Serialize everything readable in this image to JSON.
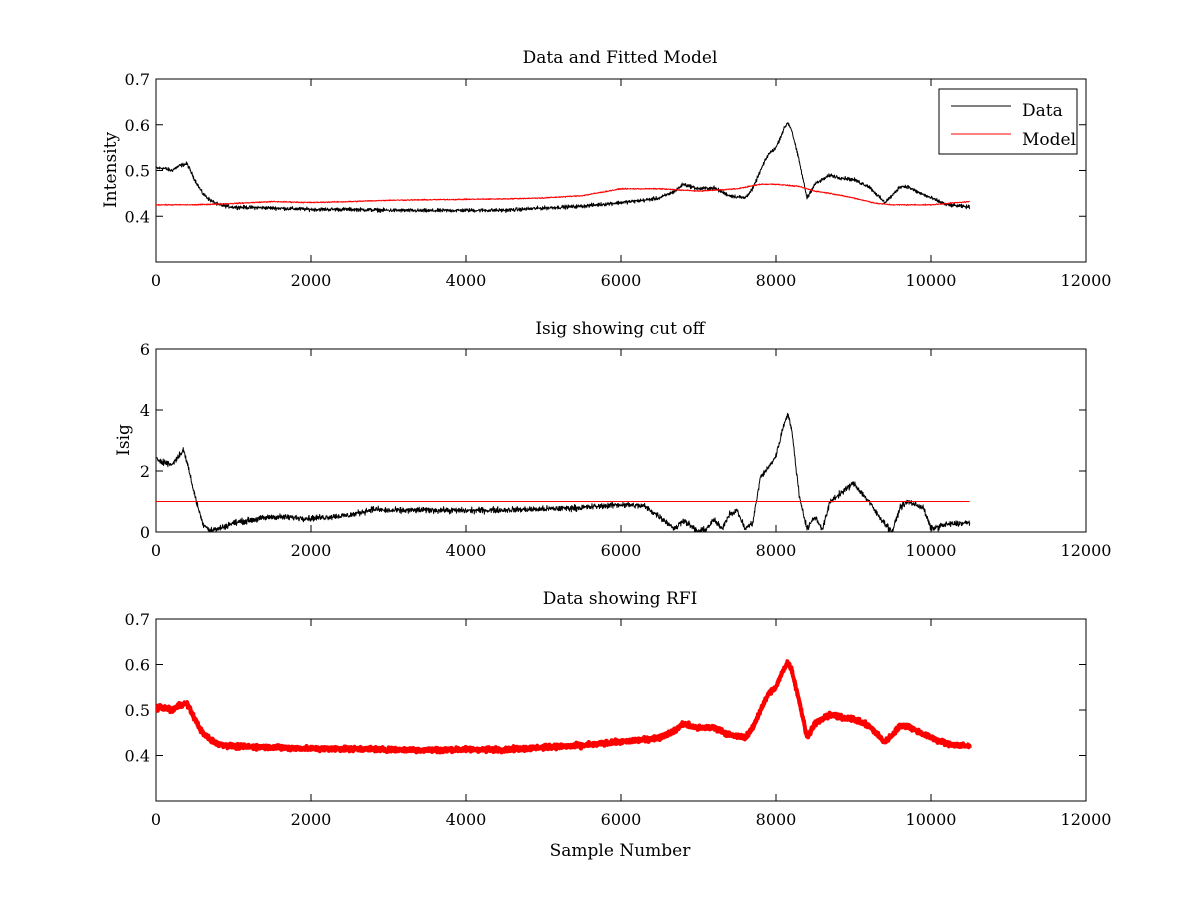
{
  "colors": {
    "data_series": "#000000",
    "model_series": "#ff0000",
    "rfi_series": "#ff0000",
    "background": "#ffffff"
  },
  "chart_data": [
    {
      "type": "line",
      "title": "Data and Fitted Model",
      "xlabel": "",
      "ylabel": "Intensity",
      "xlim": [
        0,
        12000
      ],
      "ylim": [
        0.3,
        0.7
      ],
      "xticks": [
        0,
        2000,
        4000,
        6000,
        8000,
        10000,
        12000
      ],
      "yticks": [
        0.4,
        0.5,
        0.6,
        0.7
      ],
      "xtick_labels": [
        "0",
        "2000",
        "4000",
        "6000",
        "8000",
        "10000",
        "12000"
      ],
      "ytick_labels": [
        "0.4",
        "0.5",
        "0.6",
        "0.7"
      ],
      "grid": false,
      "legend": {
        "placement": "top-right",
        "entries": [
          "Data",
          "Model"
        ]
      },
      "series": [
        {
          "name": "Data",
          "color": "#000000",
          "noise": 0.005,
          "x": [
            0,
            100,
            200,
            300,
            400,
            500,
            600,
            700,
            800,
            1000,
            1500,
            2000,
            2500,
            3000,
            3500,
            4000,
            4500,
            5000,
            5500,
            6000,
            6300,
            6500,
            6700,
            6800,
            6900,
            7000,
            7200,
            7400,
            7600,
            7700,
            7800,
            7900,
            8000,
            8100,
            8150,
            8200,
            8300,
            8400,
            8500,
            8600,
            8700,
            8800,
            9000,
            9200,
            9400,
            9500,
            9600,
            9700,
            9800,
            10000,
            10200,
            10500
          ],
          "y": [
            0.505,
            0.505,
            0.5,
            0.51,
            0.515,
            0.48,
            0.45,
            0.435,
            0.425,
            0.42,
            0.418,
            0.415,
            0.415,
            0.413,
            0.412,
            0.413,
            0.413,
            0.418,
            0.422,
            0.43,
            0.435,
            0.44,
            0.455,
            0.47,
            0.465,
            0.46,
            0.462,
            0.445,
            0.44,
            0.46,
            0.5,
            0.535,
            0.55,
            0.59,
            0.605,
            0.59,
            0.52,
            0.44,
            0.47,
            0.48,
            0.49,
            0.485,
            0.48,
            0.465,
            0.43,
            0.445,
            0.465,
            0.465,
            0.455,
            0.44,
            0.425,
            0.42
          ]
        },
        {
          "name": "Model",
          "color": "#ff0000",
          "noise": 0.0015,
          "x": [
            0,
            500,
            1000,
            1500,
            2000,
            2500,
            3000,
            3500,
            4000,
            4500,
            5000,
            5500,
            6000,
            6500,
            7000,
            7500,
            7800,
            8000,
            8300,
            8500,
            8700,
            9000,
            9300,
            9500,
            10000,
            10500
          ],
          "y": [
            0.425,
            0.425,
            0.428,
            0.432,
            0.43,
            0.432,
            0.435,
            0.436,
            0.437,
            0.438,
            0.44,
            0.445,
            0.46,
            0.46,
            0.455,
            0.46,
            0.47,
            0.47,
            0.465,
            0.455,
            0.45,
            0.44,
            0.428,
            0.425,
            0.425,
            0.432
          ]
        }
      ]
    },
    {
      "type": "line",
      "title": "Isig showing cut off",
      "xlabel": "",
      "ylabel": "Isig",
      "xlim": [
        0,
        12000
      ],
      "ylim": [
        0,
        6
      ],
      "xticks": [
        0,
        2000,
        4000,
        6000,
        8000,
        10000,
        12000
      ],
      "yticks": [
        0,
        2,
        4,
        6
      ],
      "xtick_labels": [
        "0",
        "2000",
        "4000",
        "6000",
        "8000",
        "10000",
        "12000"
      ],
      "ytick_labels": [
        "0",
        "2",
        "4",
        "6"
      ],
      "grid": false,
      "series": [
        {
          "color": "#000000",
          "noise": 0.12,
          "x": [
            0,
            100,
            200,
            300,
            350,
            400,
            500,
            600,
            700,
            800,
            1000,
            1500,
            2000,
            2500,
            2800,
            3000,
            3500,
            4000,
            5000,
            5500,
            6000,
            6300,
            6500,
            6700,
            6800,
            6900,
            7000,
            7100,
            7200,
            7300,
            7400,
            7500,
            7600,
            7700,
            7800,
            7900,
            8000,
            8100,
            8150,
            8200,
            8300,
            8400,
            8500,
            8600,
            8700,
            8800,
            9000,
            9200,
            9300,
            9400,
            9500,
            9600,
            9700,
            9800,
            9900,
            10000,
            10200,
            10500
          ],
          "y": [
            2.4,
            2.3,
            2.2,
            2.5,
            2.7,
            2.3,
            1.2,
            0.3,
            0.05,
            0.1,
            0.3,
            0.5,
            0.45,
            0.55,
            0.75,
            0.7,
            0.72,
            0.7,
            0.75,
            0.8,
            0.9,
            0.85,
            0.5,
            0.1,
            0.4,
            0.2,
            0.0,
            0.1,
            0.4,
            0.1,
            0.6,
            0.7,
            0.1,
            0.3,
            1.8,
            2.1,
            2.5,
            3.5,
            3.9,
            3.4,
            1.2,
            0.1,
            0.5,
            0.1,
            1.0,
            1.2,
            1.6,
            1.0,
            0.6,
            0.3,
            0.0,
            0.8,
            1.0,
            0.9,
            0.8,
            0.1,
            0.25,
            0.3
          ]
        },
        {
          "color": "#ff0000",
          "noise": 0,
          "x": [
            0,
            10500
          ],
          "y": [
            1.0,
            1.0
          ]
        }
      ]
    },
    {
      "type": "line",
      "title": "Data showing RFI",
      "xlabel": "Sample Number",
      "ylabel": "",
      "xlim": [
        0,
        12000
      ],
      "ylim": [
        0.3,
        0.7
      ],
      "xticks": [
        0,
        2000,
        4000,
        6000,
        8000,
        10000,
        12000
      ],
      "yticks": [
        0.4,
        0.5,
        0.6,
        0.7
      ],
      "xtick_labels": [
        "0",
        "2000",
        "4000",
        "6000",
        "8000",
        "10000",
        "12000"
      ],
      "ytick_labels": [
        "0.4",
        "0.5",
        "0.6",
        "0.7"
      ],
      "grid": false,
      "series": [
        {
          "color": "#ff0000",
          "noise": 0.006,
          "thick": true,
          "x": [
            0,
            100,
            200,
            300,
            400,
            500,
            600,
            700,
            800,
            1000,
            1500,
            2000,
            2500,
            3000,
            3500,
            4000,
            4500,
            5000,
            5500,
            6000,
            6300,
            6500,
            6700,
            6800,
            6900,
            7000,
            7200,
            7400,
            7600,
            7700,
            7800,
            7900,
            8000,
            8100,
            8150,
            8200,
            8300,
            8400,
            8500,
            8600,
            8700,
            8800,
            9000,
            9200,
            9400,
            9500,
            9600,
            9700,
            9800,
            10000,
            10200,
            10500
          ],
          "y": [
            0.505,
            0.505,
            0.5,
            0.51,
            0.515,
            0.48,
            0.45,
            0.435,
            0.425,
            0.42,
            0.418,
            0.415,
            0.415,
            0.413,
            0.412,
            0.413,
            0.413,
            0.418,
            0.422,
            0.43,
            0.435,
            0.44,
            0.455,
            0.47,
            0.465,
            0.46,
            0.462,
            0.445,
            0.44,
            0.46,
            0.5,
            0.535,
            0.55,
            0.59,
            0.605,
            0.59,
            0.52,
            0.44,
            0.47,
            0.48,
            0.49,
            0.485,
            0.48,
            0.465,
            0.43,
            0.445,
            0.465,
            0.465,
            0.455,
            0.44,
            0.425,
            0.42
          ]
        }
      ]
    }
  ]
}
